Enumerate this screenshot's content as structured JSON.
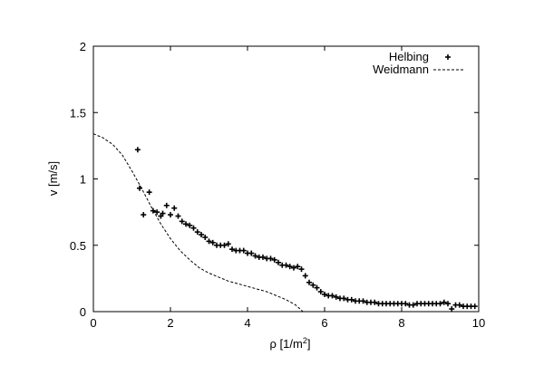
{
  "chart_data": {
    "type": "scatter",
    "xlabel": "ρ [1/m",
    "xlabel_sup": "2",
    "xlabel_close": "]",
    "ylabel": "v [m/s]",
    "xlim": [
      0,
      10
    ],
    "ylim": [
      0,
      2
    ],
    "xticks": [
      "0",
      "2",
      "4",
      "6",
      "8",
      "10"
    ],
    "yticks": [
      "0",
      "0.5",
      "1",
      "1.5",
      "2"
    ],
    "xtick_values": [
      0,
      2,
      4,
      6,
      8,
      10
    ],
    "ytick_values": [
      0,
      0.5,
      1,
      1.5,
      2
    ],
    "grid": false,
    "legend_position": "top-right",
    "series": [
      {
        "name": "Helbing",
        "style": "points",
        "x": [
          1.15,
          1.2,
          1.3,
          1.45,
          1.55,
          1.65,
          1.75,
          1.8,
          1.9,
          2.0,
          2.1,
          2.2,
          2.3,
          2.4,
          2.5,
          2.6,
          2.7,
          2.8,
          2.9,
          3.0,
          3.1,
          3.2,
          3.3,
          3.4,
          3.5,
          3.6,
          3.7,
          3.8,
          3.9,
          4.0,
          4.1,
          4.2,
          4.3,
          4.4,
          4.5,
          4.6,
          4.7,
          4.8,
          4.9,
          5.0,
          5.1,
          5.2,
          5.3,
          5.4,
          5.5,
          5.6,
          5.7,
          5.8,
          5.9,
          6.0,
          6.1,
          6.2,
          6.3,
          6.4,
          6.5,
          6.6,
          6.7,
          6.8,
          6.9,
          7.0,
          7.1,
          7.2,
          7.3,
          7.4,
          7.5,
          7.6,
          7.7,
          7.8,
          7.9,
          8.0,
          8.1,
          8.2,
          8.3,
          8.4,
          8.5,
          8.6,
          8.7,
          8.8,
          8.9,
          9.0,
          9.1,
          9.2,
          9.3,
          9.4,
          9.5,
          9.6,
          9.7,
          9.8,
          9.9
        ],
        "y": [
          1.22,
          0.93,
          0.73,
          0.9,
          0.76,
          0.75,
          0.72,
          0.74,
          0.8,
          0.73,
          0.78,
          0.72,
          0.68,
          0.66,
          0.65,
          0.63,
          0.6,
          0.58,
          0.56,
          0.53,
          0.52,
          0.5,
          0.5,
          0.5,
          0.51,
          0.47,
          0.46,
          0.46,
          0.46,
          0.44,
          0.44,
          0.42,
          0.41,
          0.41,
          0.4,
          0.4,
          0.39,
          0.37,
          0.35,
          0.35,
          0.34,
          0.33,
          0.34,
          0.32,
          0.27,
          0.22,
          0.2,
          0.18,
          0.15,
          0.13,
          0.12,
          0.12,
          0.11,
          0.1,
          0.1,
          0.09,
          0.09,
          0.08,
          0.08,
          0.08,
          0.07,
          0.07,
          0.07,
          0.06,
          0.06,
          0.06,
          0.06,
          0.06,
          0.06,
          0.06,
          0.06,
          0.05,
          0.05,
          0.06,
          0.06,
          0.06,
          0.06,
          0.06,
          0.06,
          0.06,
          0.07,
          0.06,
          0.02,
          0.05,
          0.05,
          0.04,
          0.04,
          0.04,
          0.04
        ]
      },
      {
        "name": "Weidmann",
        "style": "dashed",
        "x": [
          0,
          0.25,
          0.5,
          0.75,
          1.0,
          1.25,
          1.5,
          1.75,
          2.0,
          2.25,
          2.5,
          2.75,
          3.0,
          3.25,
          3.5,
          3.75,
          4.0,
          4.25,
          4.5,
          4.75,
          5.0,
          5.25,
          5.4,
          5.44
        ],
        "y": [
          1.34,
          1.31,
          1.26,
          1.18,
          1.06,
          0.93,
          0.79,
          0.66,
          0.55,
          0.46,
          0.39,
          0.33,
          0.29,
          0.26,
          0.23,
          0.21,
          0.19,
          0.17,
          0.15,
          0.12,
          0.09,
          0.05,
          0.01,
          0
        ]
      }
    ]
  }
}
